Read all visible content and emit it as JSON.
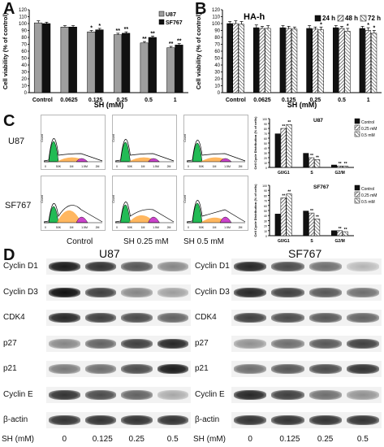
{
  "panel_letters": {
    "a": "A",
    "b": "B",
    "c": "C",
    "d": "D"
  },
  "colors": {
    "u87": "#9e9e9e",
    "sf767": "#111111",
    "control_bar": "#111111",
    "hatch_bar": "#777777",
    "g0g1_peak": "#22bb55",
    "s_fill": "#ffaa44",
    "g2_fill": "#cc44cc"
  },
  "chart_data": [
    {
      "type": "bar",
      "panel": "A",
      "categories": [
        "Control",
        "0.0625",
        "0.125",
        "0.25",
        "0.5",
        "1"
      ],
      "xlabel": "SH (mM)",
      "ylabel": "Cell viability (% of control)",
      "ylim": [
        0,
        120
      ],
      "yticks": [
        "0",
        "10",
        "20",
        "30",
        "40",
        "50",
        "60",
        "70",
        "80",
        "90",
        "100",
        "110",
        "120"
      ],
      "series": [
        {
          "name": "U87",
          "values": [
            101,
            95,
            88,
            84,
            72,
            65
          ],
          "errors": [
            3,
            2,
            2,
            2,
            2,
            2
          ],
          "sig": [
            "",
            "",
            "*",
            "**",
            "**",
            "**"
          ]
        },
        {
          "name": "SF767",
          "values": [
            100,
            95,
            91,
            86,
            80,
            69
          ],
          "errors": [
            2,
            2,
            2,
            2,
            2,
            2
          ],
          "sig": [
            "",
            "",
            "*",
            "**",
            "**",
            "**"
          ]
        }
      ],
      "legend": "top-right"
    },
    {
      "type": "bar",
      "panel": "B",
      "title": "HA-h",
      "categories": [
        "Control",
        "0.0625",
        "0.125",
        "0.25",
        "0.5",
        "1"
      ],
      "xlabel": "SH (mM)",
      "ylabel": "Cell viability (% of control)",
      "ylim": [
        0,
        120
      ],
      "yticks": [
        "0",
        "10",
        "20",
        "30",
        "40",
        "50",
        "60",
        "70",
        "80",
        "90",
        "100",
        "110",
        "120"
      ],
      "series": [
        {
          "name": "24 h",
          "values": [
            100,
            94,
            94,
            93,
            94,
            93
          ],
          "errors": [
            3,
            4,
            3,
            4,
            3,
            3
          ],
          "sig": [
            "",
            "",
            "",
            "",
            "",
            ""
          ]
        },
        {
          "name": "48 h",
          "values": [
            100,
            93,
            93,
            92,
            93,
            90
          ],
          "errors": [
            4,
            3,
            3,
            3,
            3,
            4
          ],
          "sig": [
            "",
            "",
            "",
            "",
            "",
            "*"
          ]
        },
        {
          "name": "72 h",
          "values": [
            99,
            93,
            92,
            91,
            89,
            86
          ],
          "errors": [
            4,
            4,
            3,
            4,
            4,
            4
          ],
          "sig": [
            "",
            "",
            "",
            "*",
            "*",
            "*"
          ]
        }
      ],
      "legend": "top-right"
    },
    {
      "type": "bar",
      "panel": "C-U87",
      "title": "U87",
      "categories": [
        "G0/G1",
        "S",
        "G2/M"
      ],
      "ylabel": "Cell Cycle Distribution (% of cells)",
      "ylim": [
        0,
        100
      ],
      "yticks": [
        "0",
        "10",
        "20",
        "30",
        "40",
        "50",
        "60",
        "70",
        "80",
        "90",
        "100"
      ],
      "series": [
        {
          "name": "Control",
          "values": [
            69,
            29,
            5
          ],
          "sig": [
            "",
            "",
            ""
          ]
        },
        {
          "name": "0.25 mM",
          "values": [
            80,
            20,
            3
          ],
          "sig": [
            "**",
            "**",
            "**"
          ]
        },
        {
          "name": "0.5 mM",
          "values": [
            88,
            16,
            3
          ],
          "sig": [
            "**",
            "**",
            "**"
          ]
        }
      ],
      "legend": "top-right"
    },
    {
      "type": "bar",
      "panel": "C-SF767",
      "title": "SF767",
      "categories": [
        "G0/G1",
        "S",
        "G2/M"
      ],
      "ylabel": "Cell Cycle Distribution (% of cells)",
      "ylim": [
        0,
        100
      ],
      "yticks": [
        "0",
        "10",
        "20",
        "30",
        "40",
        "50",
        "60",
        "70",
        "80",
        "90",
        "100"
      ],
      "series": [
        {
          "name": "Control",
          "values": [
            43,
            49,
            10
          ],
          "sig": [
            "",
            "",
            ""
          ]
        },
        {
          "name": "0.25 mM",
          "values": [
            75,
            45,
            10
          ],
          "sig": [
            "**",
            "**",
            "**"
          ]
        },
        {
          "name": "0.5 mM",
          "values": [
            83,
            33,
            8
          ],
          "sig": [
            "**",
            "**",
            "**"
          ]
        }
      ],
      "legend": "top-right"
    }
  ],
  "flow": {
    "rows": [
      "U87",
      "SF767"
    ],
    "cols": [
      "Control",
      "SH 0.25 mM",
      "SH 0.5 mM"
    ],
    "count_label": "Count",
    "ticks": [
      "0",
      "50K",
      "1M",
      "1.5M",
      "2M"
    ]
  },
  "western": {
    "u87_title": "U87",
    "sf767_title": "SF767",
    "proteins": [
      "Cyclin D1",
      "Cyclin D3",
      "CDK4",
      "p27",
      "p21",
      "Cyclin E",
      "β-actin"
    ],
    "sh_label": "SH (mM)",
    "doses": [
      "0",
      "0.125",
      "0.25",
      "0.5"
    ],
    "u87_intensity": [
      [
        0.9,
        0.8,
        0.65,
        0.45
      ],
      [
        0.95,
        0.75,
        0.45,
        0.35
      ],
      [
        0.85,
        0.75,
        0.7,
        0.6
      ],
      [
        0.45,
        0.6,
        0.75,
        0.85
      ],
      [
        0.5,
        0.55,
        0.7,
        0.9
      ],
      [
        0.8,
        0.7,
        0.6,
        0.3
      ],
      [
        0.8,
        0.8,
        0.8,
        0.8
      ]
    ],
    "sf767_intensity": [
      [
        0.85,
        0.7,
        0.55,
        0.25
      ],
      [
        0.85,
        0.75,
        0.65,
        0.55
      ],
      [
        0.75,
        0.7,
        0.65,
        0.6
      ],
      [
        0.4,
        0.55,
        0.65,
        0.75
      ],
      [
        0.55,
        0.65,
        0.7,
        0.8
      ],
      [
        0.85,
        0.75,
        0.55,
        0.4
      ],
      [
        0.8,
        0.8,
        0.8,
        0.8
      ]
    ]
  }
}
